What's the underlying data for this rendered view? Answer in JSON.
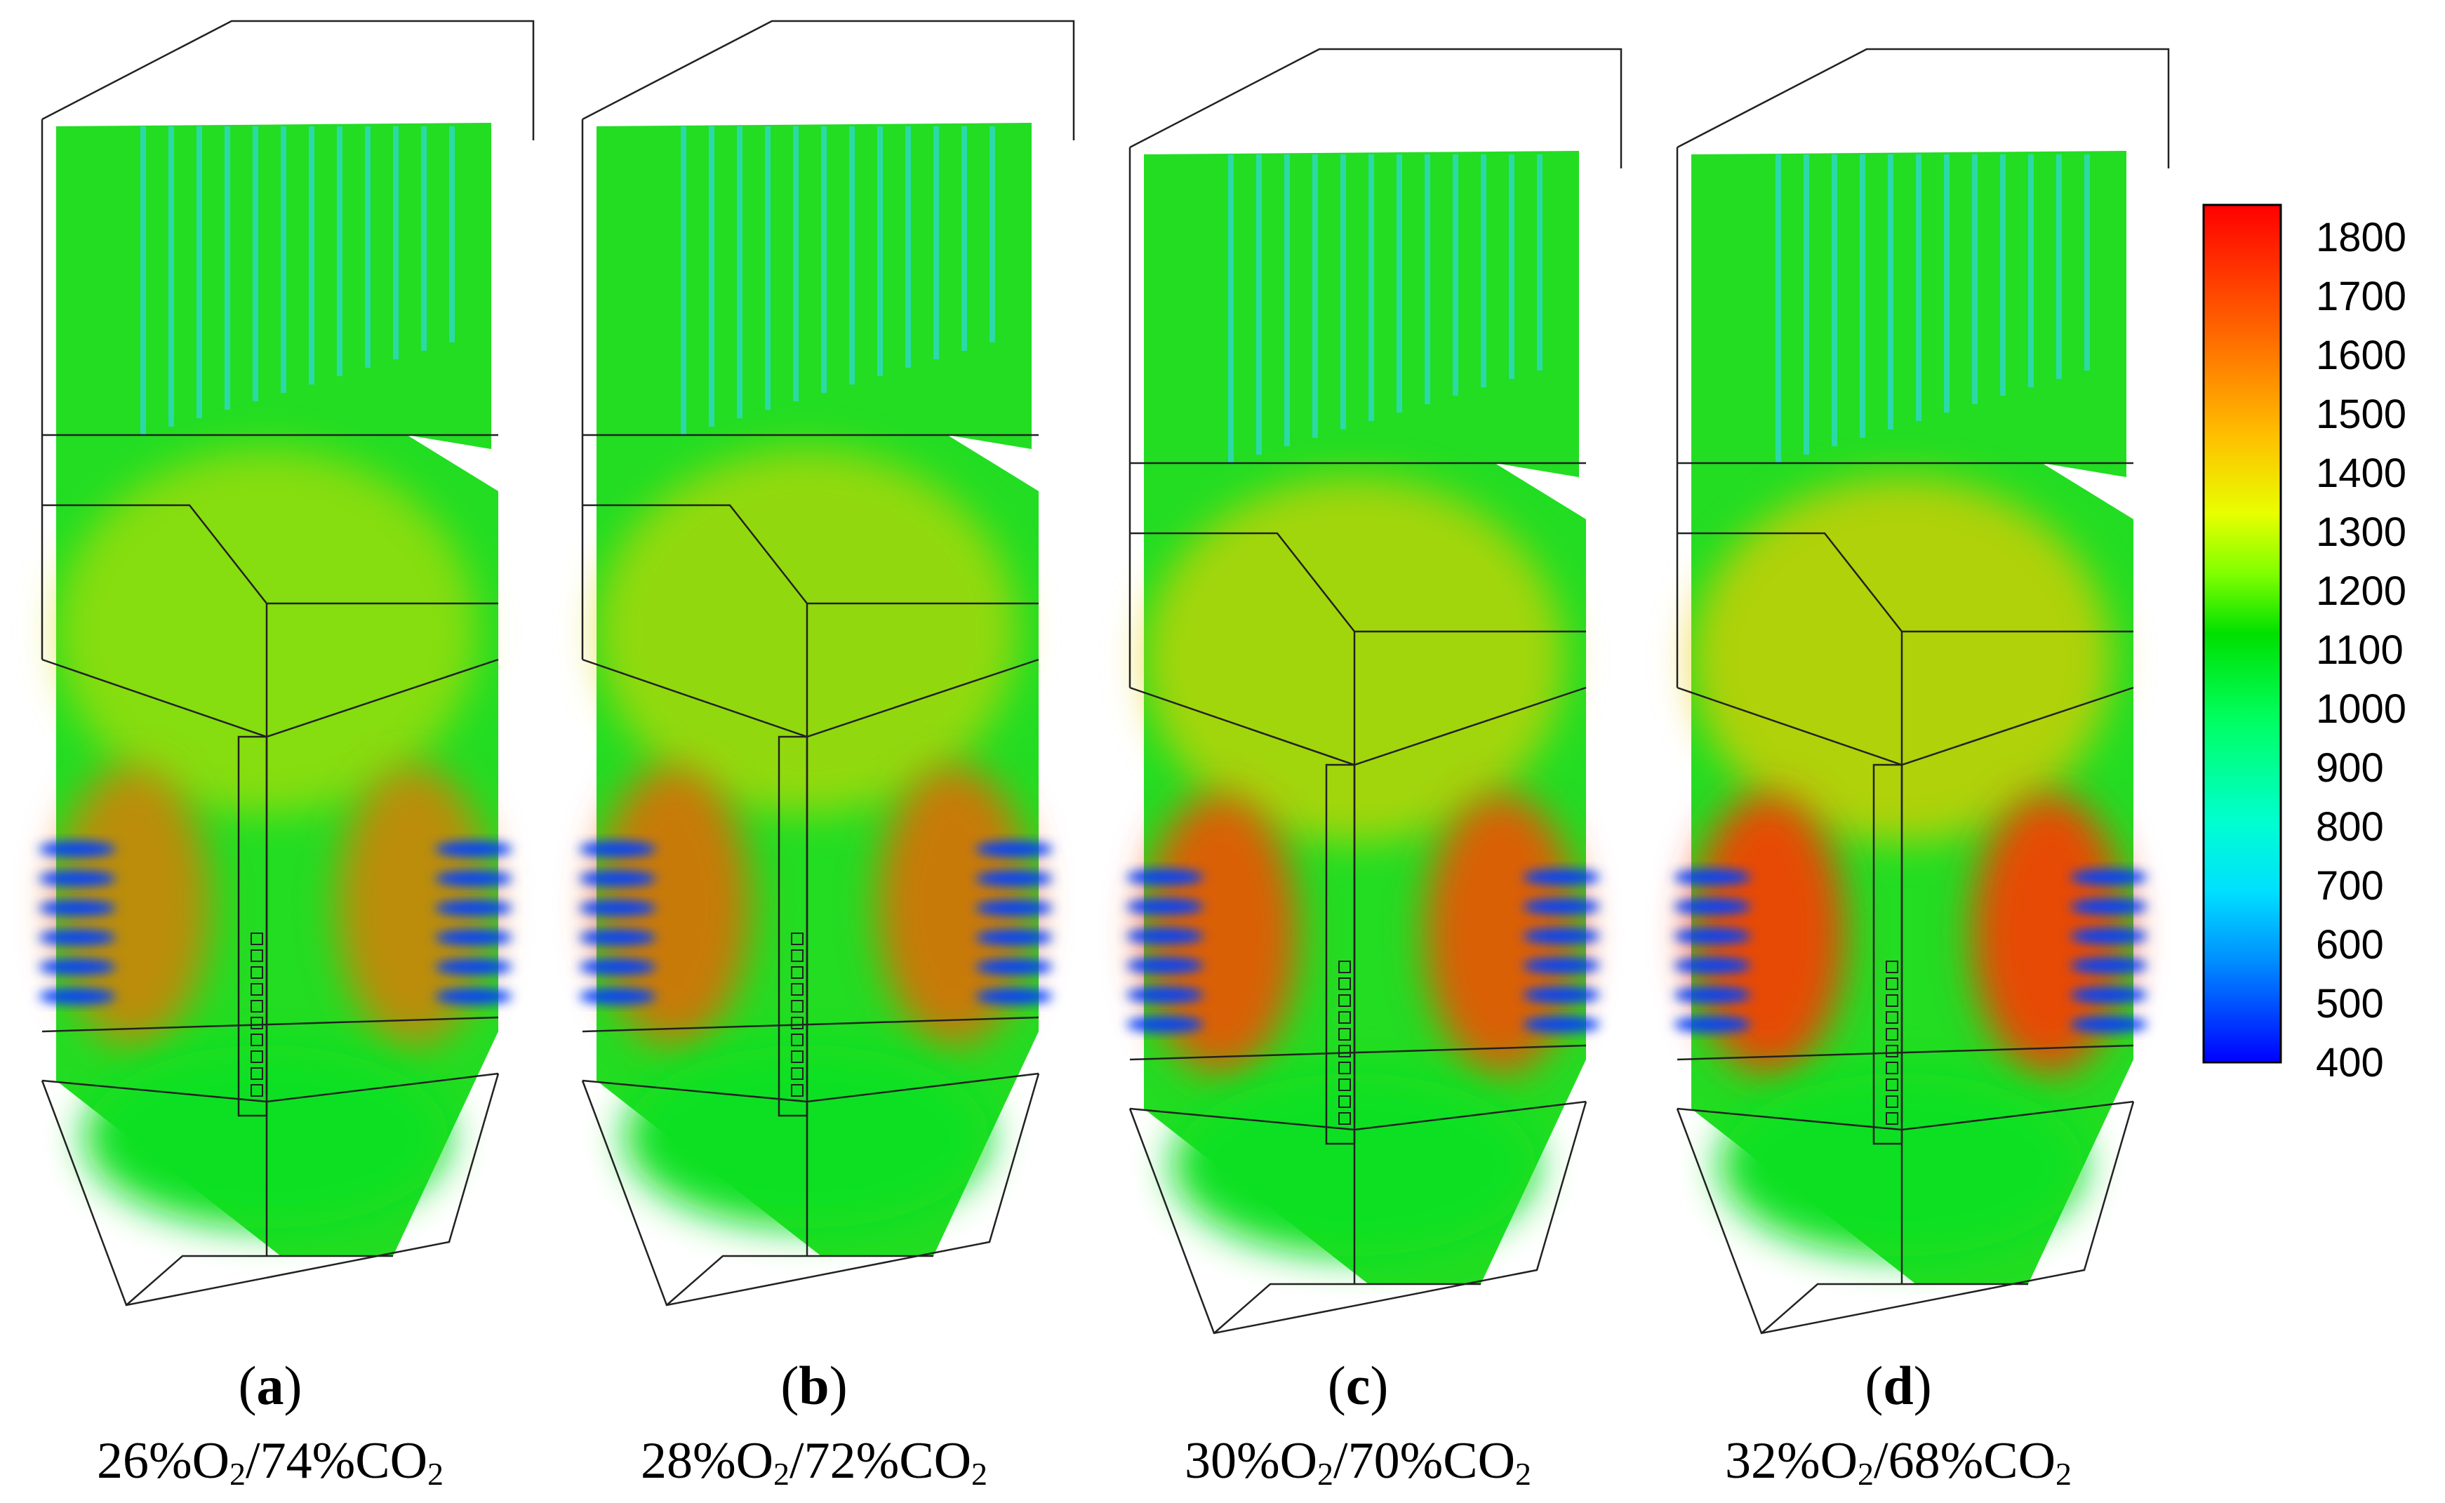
{
  "panels": [
    {
      "letter": "a",
      "o2": "26%O",
      "co2": "/74%CO",
      "subscript": "2"
    },
    {
      "letter": "b",
      "o2": "28%O",
      "co2": "/72%CO",
      "subscript": "2"
    },
    {
      "letter": "c",
      "o2": "30%O",
      "co2": "/70%CO",
      "subscript": "2"
    },
    {
      "letter": "d",
      "o2": "32%O",
      "co2": "/68%CO",
      "subscript": "2"
    }
  ],
  "colorbar": {
    "ticks": [
      "1800",
      "1700",
      "1600",
      "1500",
      "1400",
      "1300",
      "1200",
      "1100",
      "1000",
      "900",
      "800",
      "700",
      "600",
      "500",
      "400"
    ],
    "colors": [
      "#ff1a00",
      "#ff8000",
      "#ffd000",
      "#e6ff00",
      "#7fff00",
      "#00e000",
      "#00ff80",
      "#00ffff",
      "#00a0ff",
      "#0000ff"
    ]
  },
  "flame_intensity": [
    0.35,
    0.5,
    0.7,
    0.85
  ]
}
